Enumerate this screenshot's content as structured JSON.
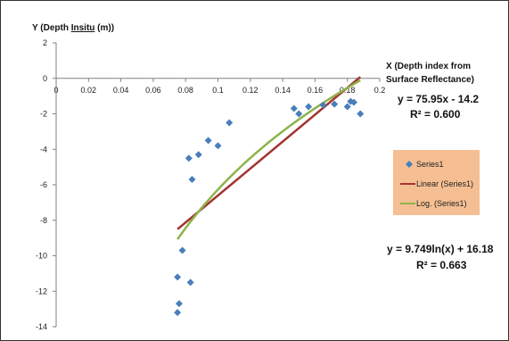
{
  "chart_data": {
    "type": "scatter",
    "ylabel_prefix": "Y (Depth ",
    "ylabel_underlined": "Insitu",
    "ylabel_suffix": " (m))",
    "xlabel_line1": "X  (Depth index from",
    "xlabel_line2": "Surface Reflectance)",
    "xlim": [
      0,
      0.2
    ],
    "ylim": [
      -14,
      2
    ],
    "x_ticks": [
      "0",
      "0.02",
      "0.04",
      "0.06",
      "0.08",
      "0.1",
      "0.12",
      "0.14",
      "0.16",
      "0.18",
      "0.2"
    ],
    "y_ticks": [
      "2",
      "0",
      "-2",
      "-4",
      "-6",
      "-8",
      "-10",
      "-12",
      "-14"
    ],
    "series": [
      {
        "name": "Series1",
        "color": "#4a7ebb",
        "x": [
          0.075,
          0.075,
          0.076,
          0.078,
          0.082,
          0.083,
          0.084,
          0.088,
          0.094,
          0.1,
          0.107,
          0.147,
          0.15,
          0.156,
          0.165,
          0.172,
          0.18,
          0.182,
          0.184,
          0.188
        ],
        "y": [
          -13.2,
          -11.2,
          -12.7,
          -9.7,
          -4.5,
          -11.5,
          -5.7,
          -4.3,
          -3.5,
          -3.8,
          -2.5,
          -1.7,
          -2.0,
          -1.6,
          -1.5,
          -1.45,
          -1.6,
          -1.3,
          -1.35,
          -2.0
        ]
      }
    ],
    "legend": [
      "Series1",
      "Linear (Series1)",
      "Log. (Series1)"
    ],
    "linear_fit": {
      "name": "Linear (Series1)",
      "color": "#a33331",
      "slope": 75.95,
      "intercept": -14.2,
      "x_range": [
        0.075,
        0.188
      ]
    },
    "log_fit": {
      "name": "Log. (Series1)",
      "color": "#8db34a",
      "a": 9.749,
      "b": 16.18,
      "x_range": [
        0.075,
        0.188
      ]
    },
    "equations": {
      "linear_eq": "y = 75.95x - 14.2",
      "linear_r2": "R² = 0.600",
      "log_eq": "y = 9.749ln(x) + 16.18",
      "log_r2": "R² = 0.663"
    },
    "colors": {
      "legend_bg": "#f5bf93",
      "axis": "#808080"
    }
  }
}
